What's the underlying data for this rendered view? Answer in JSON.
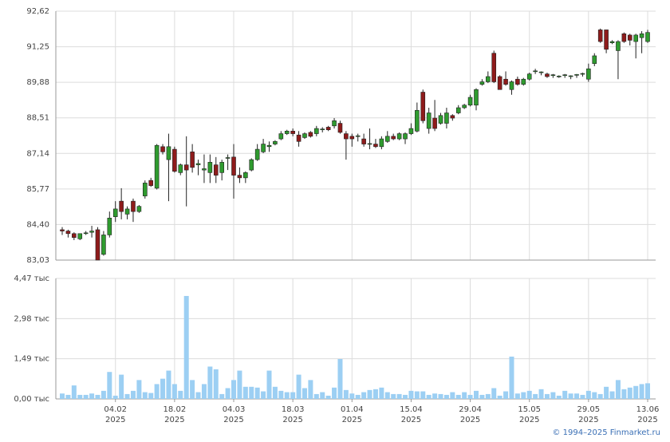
{
  "chart_data": [
    {
      "type": "candlestick",
      "open": [
        84.2,
        84.15,
        84.05,
        83.85,
        84.05,
        84.1,
        84.2,
        83.25,
        84.0,
        84.7,
        85.3,
        84.8,
        85.3,
        84.9,
        85.5,
        86.1,
        85.8,
        87.4,
        86.9,
        87.3,
        86.4,
        86.7,
        87.2,
        86.7,
        86.5,
        86.4,
        86.7,
        86.4,
        86.95,
        87.0,
        86.3,
        86.2,
        86.5,
        86.9,
        87.2,
        87.4,
        87.5,
        87.7,
        87.9,
        88.0,
        87.85,
        87.75,
        87.95,
        87.9,
        88.05,
        88.15,
        88.2,
        88.3,
        87.9,
        87.8,
        87.8,
        87.7,
        87.5,
        87.5,
        87.4,
        87.6,
        87.8,
        87.7,
        87.7,
        87.9,
        88.0,
        89.5,
        88.1,
        88.5,
        88.3,
        88.3,
        88.6,
        88.7,
        88.9,
        89.0,
        89.0,
        89.8,
        89.9,
        91.0,
        90.1,
        90.0,
        89.6,
        90.0,
        89.8,
        90.0,
        90.3,
        90.25,
        90.2,
        90.15,
        90.1,
        90.15,
        90.1,
        90.15,
        90.2,
        90.0,
        90.6,
        91.9,
        91.9,
        91.4,
        91.1,
        91.75,
        91.7,
        91.45,
        91.6,
        91.45
      ],
      "high": [
        84.3,
        84.2,
        84.1,
        84.05,
        84.15,
        84.35,
        84.3,
        84.15,
        84.9,
        85.3,
        85.8,
        85.1,
        85.4,
        85.15,
        86.1,
        86.2,
        87.5,
        87.5,
        87.9,
        87.4,
        86.75,
        87.8,
        87.5,
        86.9,
        87.1,
        87.1,
        87.0,
        86.9,
        87.1,
        87.5,
        86.6,
        86.45,
        86.95,
        87.5,
        87.7,
        87.6,
        87.65,
        88.0,
        88.05,
        88.1,
        88.0,
        87.95,
        88.0,
        88.2,
        88.15,
        88.2,
        88.5,
        88.4,
        88.0,
        87.9,
        87.9,
        87.9,
        88.1,
        87.7,
        87.8,
        88.0,
        87.9,
        87.95,
        87.95,
        88.3,
        89.1,
        89.6,
        88.9,
        89.2,
        88.7,
        88.9,
        88.65,
        89.0,
        89.05,
        89.4,
        89.65,
        90.0,
        90.3,
        91.1,
        90.15,
        90.3,
        89.95,
        90.1,
        90.05,
        90.25,
        90.4,
        90.3,
        90.25,
        90.2,
        90.15,
        90.2,
        90.15,
        90.2,
        90.25,
        90.6,
        91.0,
        91.95,
        91.9,
        91.5,
        91.5,
        91.8,
        91.75,
        91.75,
        91.85,
        91.9
      ],
      "low": [
        84.0,
        83.9,
        83.8,
        83.8,
        84.0,
        83.9,
        83.03,
        83.2,
        83.9,
        84.5,
        84.6,
        84.6,
        84.5,
        84.85,
        85.4,
        85.85,
        85.75,
        87.1,
        85.3,
        86.4,
        86.3,
        85.1,
        86.4,
        86.3,
        86.0,
        86.0,
        86.0,
        86.1,
        86.5,
        85.4,
        86.0,
        86.0,
        86.45,
        86.85,
        87.15,
        87.2,
        87.45,
        87.65,
        87.85,
        87.8,
        87.4,
        87.7,
        87.75,
        87.8,
        87.95,
        88.0,
        88.1,
        87.9,
        86.9,
        87.4,
        87.6,
        87.4,
        87.3,
        87.35,
        87.3,
        87.55,
        87.65,
        87.65,
        87.5,
        87.85,
        87.95,
        88.3,
        87.9,
        88.0,
        88.25,
        88.1,
        88.4,
        88.65,
        88.85,
        88.95,
        88.8,
        89.75,
        89.85,
        89.85,
        89.6,
        89.75,
        89.4,
        89.75,
        89.75,
        89.95,
        90.2,
        90.15,
        90.05,
        90.05,
        90.05,
        90.05,
        90.0,
        90.05,
        90.1,
        89.9,
        90.5,
        91.4,
        91.0,
        91.35,
        90.0,
        91.4,
        91.3,
        90.8,
        91.0,
        91.4
      ],
      "close": [
        84.15,
        84.05,
        83.9,
        84.05,
        84.08,
        84.15,
        83.03,
        84.0,
        84.65,
        85.0,
        84.9,
        85.0,
        84.9,
        85.1,
        86.0,
        85.9,
        87.45,
        87.2,
        87.4,
        86.45,
        86.7,
        86.5,
        86.6,
        86.75,
        86.55,
        86.8,
        86.3,
        86.8,
        86.98,
        86.3,
        86.2,
        86.4,
        86.9,
        87.3,
        87.5,
        87.45,
        87.6,
        87.9,
        88.0,
        87.9,
        87.6,
        87.9,
        87.8,
        88.1,
        88.08,
        88.05,
        88.4,
        87.95,
        87.7,
        87.7,
        87.82,
        87.5,
        87.52,
        87.4,
        87.7,
        87.8,
        87.7,
        87.9,
        87.9,
        88.1,
        88.8,
        88.4,
        88.7,
        88.1,
        88.6,
        88.7,
        88.5,
        88.9,
        89.0,
        89.3,
        89.6,
        89.9,
        90.1,
        89.9,
        89.6,
        89.8,
        89.9,
        89.8,
        90.0,
        90.2,
        90.32,
        90.28,
        90.1,
        90.17,
        90.12,
        90.17,
        90.13,
        90.18,
        90.22,
        90.4,
        90.9,
        91.45,
        91.15,
        91.45,
        91.45,
        91.45,
        91.5,
        91.7,
        91.75,
        91.8
      ],
      "up_color": "#2f9b2f",
      "down_color": "#8e1b1b",
      "ylim": [
        83.03,
        92.62
      ],
      "yticks": [
        {
          "value": 83.03,
          "label": "83,03"
        },
        {
          "value": 84.4,
          "label": "84,40"
        },
        {
          "value": 85.77,
          "label": "85,77"
        },
        {
          "value": 87.14,
          "label": "87,14"
        },
        {
          "value": 88.51,
          "label": "88,51"
        },
        {
          "value": 89.88,
          "label": "89,88"
        },
        {
          "value": 91.25,
          "label": "91,25"
        },
        {
          "value": 92.62,
          "label": "92,62"
        }
      ],
      "grid": true
    },
    {
      "type": "bar",
      "categories": [
        null,
        null,
        null,
        null,
        null,
        null,
        null,
        null,
        null,
        "04.02",
        null,
        null,
        null,
        null,
        null,
        null,
        null,
        null,
        null,
        "18.02",
        null,
        null,
        null,
        null,
        null,
        null,
        null,
        null,
        null,
        "04.03",
        null,
        null,
        null,
        null,
        null,
        null,
        null,
        null,
        null,
        "18.03",
        null,
        null,
        null,
        null,
        null,
        null,
        null,
        null,
        null,
        "01.04",
        null,
        null,
        null,
        null,
        null,
        null,
        null,
        null,
        null,
        "15.04",
        null,
        null,
        null,
        null,
        null,
        null,
        null,
        null,
        null,
        "29.04",
        null,
        null,
        null,
        null,
        null,
        null,
        null,
        null,
        null,
        "15.05",
        null,
        null,
        null,
        null,
        null,
        null,
        null,
        null,
        null,
        "29.05",
        null,
        null,
        null,
        null,
        null,
        null,
        null,
        null,
        null,
        "13.06"
      ],
      "x_sublabel": "2025",
      "values": [
        0.2,
        0.15,
        0.5,
        0.15,
        0.15,
        0.2,
        0.15,
        0.3,
        1.0,
        0.12,
        0.9,
        0.18,
        0.3,
        0.7,
        0.25,
        0.22,
        0.55,
        0.75,
        1.05,
        0.55,
        0.3,
        3.82,
        0.7,
        0.25,
        0.55,
        1.2,
        1.1,
        0.18,
        0.4,
        0.7,
        1.05,
        0.45,
        0.45,
        0.42,
        0.28,
        1.05,
        0.45,
        0.3,
        0.25,
        0.25,
        0.9,
        0.4,
        0.7,
        0.18,
        0.25,
        0.12,
        0.42,
        1.48,
        0.33,
        0.2,
        0.15,
        0.25,
        0.33,
        0.36,
        0.42,
        0.25,
        0.18,
        0.18,
        0.15,
        0.3,
        0.28,
        0.28,
        0.15,
        0.2,
        0.18,
        0.15,
        0.25,
        0.15,
        0.25,
        0.15,
        0.3,
        0.15,
        0.18,
        0.4,
        0.12,
        0.28,
        1.57,
        0.2,
        0.25,
        0.3,
        0.18,
        0.36,
        0.18,
        0.25,
        0.12,
        0.3,
        0.2,
        0.2,
        0.15,
        0.3,
        0.25,
        0.18,
        0.45,
        0.28,
        0.7,
        0.36,
        0.42,
        0.48,
        0.55,
        0.58
      ],
      "color": "#9ccff3",
      "ylim": [
        0,
        4.47
      ],
      "yticks": [
        {
          "value": 0,
          "label": "0,00 тыс"
        },
        {
          "value": 1.49,
          "label": "1,49 тыс"
        },
        {
          "value": 2.98,
          "label": "2,98 тыс"
        },
        {
          "value": 4.47,
          "label": "4,47 тыс"
        }
      ],
      "grid": true
    }
  ],
  "footer": {
    "copyright": "© 1994–2025 Finmarket.ru"
  }
}
